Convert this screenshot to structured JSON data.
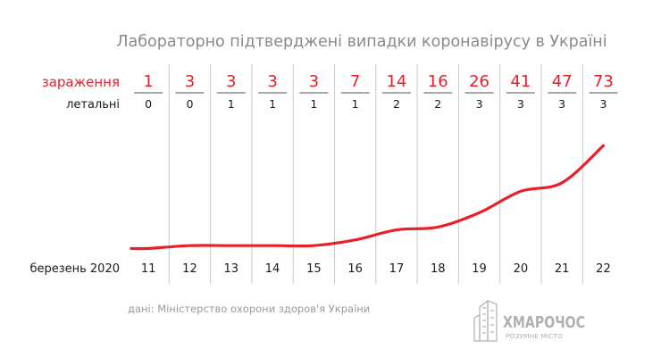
{
  "chart_data": {
    "type": "line",
    "title": "Лабораторно підтверджені випадки коронавірусу в Україні",
    "xlabel": "березень 2020",
    "categories": [
      "11",
      "12",
      "13",
      "14",
      "15",
      "16",
      "17",
      "18",
      "19",
      "20",
      "21",
      "22"
    ],
    "series": [
      {
        "name": "зараження",
        "values": [
          1,
          3,
          3,
          3,
          3,
          7,
          14,
          16,
          26,
          41,
          47,
          73
        ]
      },
      {
        "name": "летальні",
        "values": [
          0,
          0,
          1,
          1,
          1,
          1,
          2,
          2,
          3,
          3,
          3,
          3
        ]
      }
    ],
    "ylim": [
      0,
      80
    ],
    "grid": true,
    "legend": "left"
  },
  "source": "дані: Міністерство охорони здоров'я України",
  "logo": {
    "name": "ХМАРОЧОС",
    "tagline": "РОЗУМНЕ МІСТО"
  },
  "colors": {
    "accent": "#e8202a",
    "text": "#1a1a1a",
    "title": "#8a8a8a",
    "grid": "#c8c8c8",
    "source": "#9a9a9a",
    "logo": "#b0b0b0"
  }
}
